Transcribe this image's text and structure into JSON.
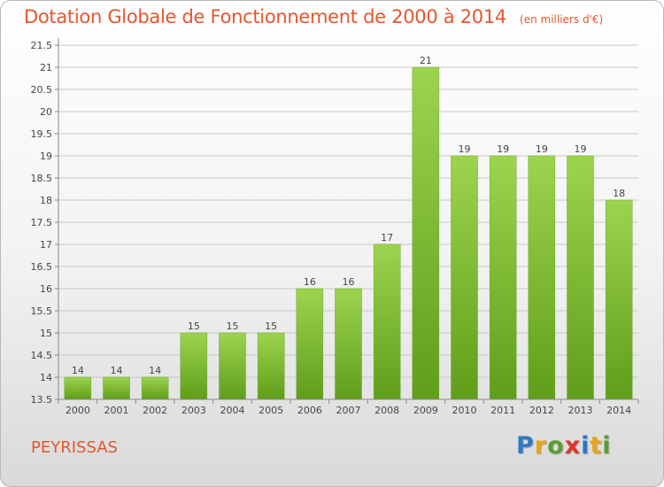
{
  "title": "Dotation Globale de Fonctionnement de 2000 à 2014",
  "unit_note": "(en milliers d'€)",
  "commune": "PEYRISSAS",
  "logo": {
    "letters": [
      "P",
      "r",
      "o",
      "x",
      "i",
      "t",
      "i"
    ],
    "colors": [
      "#2f78c4",
      "#e8a317",
      "#5a9e2f",
      "#d8352a",
      "#2f78c4",
      "#e8a317",
      "#5a9e2f"
    ]
  },
  "chart_data": {
    "type": "bar",
    "title": "Dotation Globale de Fonctionnement de 2000 à 2014",
    "subtitle": "(en milliers d'€)",
    "xlabel": "",
    "ylabel": "",
    "categories": [
      "2000",
      "2001",
      "2002",
      "2003",
      "2004",
      "2005",
      "2006",
      "2007",
      "2008",
      "2009",
      "2010",
      "2011",
      "2012",
      "2013",
      "2014"
    ],
    "values": [
      14,
      14,
      14,
      15,
      15,
      15,
      16,
      16,
      17,
      21,
      19,
      19,
      19,
      19,
      18
    ],
    "data_labels": [
      "14",
      "14",
      "14",
      "15",
      "15",
      "15",
      "16",
      "16",
      "17",
      "21",
      "19",
      "19",
      "19",
      "19",
      "18"
    ],
    "ylim": [
      13.5,
      21.5
    ],
    "yticks": [
      "13.5",
      "14",
      "14.5",
      "15",
      "15.5",
      "16",
      "16.5",
      "17",
      "17.5",
      "18",
      "18.5",
      "19",
      "19.5",
      "20",
      "20.5",
      "21",
      "21.5"
    ],
    "grid": true,
    "colors": {
      "bar_light": "#9dd44f",
      "bar_dark": "#5f9e1a",
      "grid": "#c8c8c8"
    }
  }
}
